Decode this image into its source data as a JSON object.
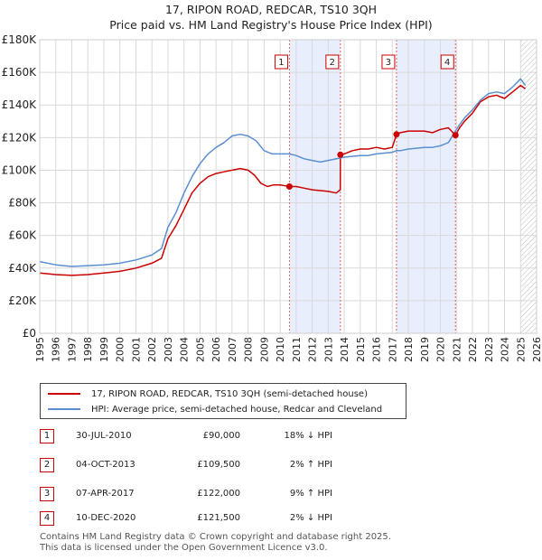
{
  "chart_data": {
    "type": "line",
    "title": "17, RIPON ROAD, REDCAR, TS10 3QH",
    "subtitle": "Price paid vs. HM Land Registry's House Price Index (HPI)",
    "ylim": [
      0,
      180000
    ],
    "xlim": [
      1995,
      2026
    ],
    "y_ticks": [
      0,
      20000,
      40000,
      60000,
      80000,
      100000,
      120000,
      140000,
      160000,
      180000
    ],
    "y_tick_labels": [
      "£0",
      "£20K",
      "£40K",
      "£60K",
      "£80K",
      "£100K",
      "£120K",
      "£140K",
      "£160K",
      "£180K"
    ],
    "x_ticks": [
      "1995",
      "1996",
      "1997",
      "1998",
      "1999",
      "2000",
      "2001",
      "2002",
      "2003",
      "2004",
      "2005",
      "2006",
      "2007",
      "2008",
      "2009",
      "2010",
      "2011",
      "2012",
      "2013",
      "2014",
      "2015",
      "2016",
      "2017",
      "2018",
      "2019",
      "2020",
      "2021",
      "2022",
      "2023",
      "2024",
      "2025",
      "2026"
    ],
    "grid": true,
    "series": [
      {
        "name": "17, RIPON ROAD, REDCAR, TS10 3QH (semi-detached house)",
        "color": "#cc0000",
        "points": [
          [
            1995.0,
            37000
          ],
          [
            1996.0,
            36000
          ],
          [
            1997.0,
            35500
          ],
          [
            1998.0,
            36000
          ],
          [
            1999.0,
            37000
          ],
          [
            2000.0,
            38000
          ],
          [
            2001.0,
            40000
          ],
          [
            2002.0,
            43000
          ],
          [
            2002.6,
            46000
          ],
          [
            2003.0,
            58000
          ],
          [
            2003.5,
            66000
          ],
          [
            2004.0,
            76000
          ],
          [
            2004.5,
            86000
          ],
          [
            2005.0,
            92000
          ],
          [
            2005.5,
            96000
          ],
          [
            2006.0,
            98000
          ],
          [
            2006.5,
            99000
          ],
          [
            2007.0,
            100000
          ],
          [
            2007.5,
            101000
          ],
          [
            2008.0,
            100000
          ],
          [
            2008.4,
            97000
          ],
          [
            2008.8,
            92000
          ],
          [
            2009.2,
            90000
          ],
          [
            2009.6,
            91000
          ],
          [
            2010.0,
            91000
          ],
          [
            2010.58,
            90000
          ],
          [
            2011.0,
            90000
          ],
          [
            2011.5,
            89000
          ],
          [
            2012.0,
            88000
          ],
          [
            2012.5,
            87500
          ],
          [
            2013.0,
            87000
          ],
          [
            2013.5,
            86000
          ],
          [
            2013.75,
            88000
          ],
          [
            2013.76,
            109500
          ],
          [
            2014.0,
            110000
          ],
          [
            2014.5,
            112000
          ],
          [
            2015.0,
            113000
          ],
          [
            2015.5,
            113000
          ],
          [
            2016.0,
            114000
          ],
          [
            2016.5,
            113000
          ],
          [
            2017.0,
            114000
          ],
          [
            2017.26,
            122000
          ],
          [
            2017.5,
            123000
          ],
          [
            2018.0,
            124000
          ],
          [
            2018.5,
            124000
          ],
          [
            2019.0,
            124000
          ],
          [
            2019.5,
            123000
          ],
          [
            2020.0,
            125000
          ],
          [
            2020.5,
            126000
          ],
          [
            2020.94,
            121500
          ],
          [
            2021.2,
            126000
          ],
          [
            2021.5,
            130000
          ],
          [
            2022.0,
            135000
          ],
          [
            2022.5,
            142000
          ],
          [
            2023.0,
            145000
          ],
          [
            2023.5,
            146000
          ],
          [
            2024.0,
            144000
          ],
          [
            2024.5,
            148000
          ],
          [
            2025.0,
            152000
          ],
          [
            2025.3,
            150000
          ]
        ]
      },
      {
        "name": "HPI: Average price, semi-detached house, Redcar and Cleveland",
        "color": "#5b8fd0",
        "points": [
          [
            1995.0,
            44000
          ],
          [
            1996.0,
            42000
          ],
          [
            1997.0,
            41000
          ],
          [
            1998.0,
            41500
          ],
          [
            1999.0,
            42000
          ],
          [
            2000.0,
            43000
          ],
          [
            2001.0,
            45000
          ],
          [
            2002.0,
            48000
          ],
          [
            2002.6,
            52000
          ],
          [
            2003.0,
            65000
          ],
          [
            2003.5,
            74000
          ],
          [
            2004.0,
            86000
          ],
          [
            2004.5,
            96000
          ],
          [
            2005.0,
            104000
          ],
          [
            2005.5,
            110000
          ],
          [
            2006.0,
            114000
          ],
          [
            2006.5,
            117000
          ],
          [
            2007.0,
            121000
          ],
          [
            2007.5,
            122000
          ],
          [
            2008.0,
            121000
          ],
          [
            2008.5,
            118000
          ],
          [
            2009.0,
            112000
          ],
          [
            2009.5,
            110000
          ],
          [
            2010.0,
            110000
          ],
          [
            2010.58,
            110000
          ],
          [
            2011.0,
            109000
          ],
          [
            2011.5,
            107000
          ],
          [
            2012.0,
            106000
          ],
          [
            2012.5,
            105000
          ],
          [
            2013.0,
            106000
          ],
          [
            2013.76,
            107500
          ],
          [
            2014.0,
            108000
          ],
          [
            2014.5,
            108500
          ],
          [
            2015.0,
            109000
          ],
          [
            2015.5,
            109000
          ],
          [
            2016.0,
            110000
          ],
          [
            2016.5,
            110500
          ],
          [
            2017.0,
            111000
          ],
          [
            2017.26,
            112000
          ],
          [
            2017.5,
            112000
          ],
          [
            2018.0,
            113000
          ],
          [
            2018.5,
            113500
          ],
          [
            2019.0,
            114000
          ],
          [
            2019.5,
            114000
          ],
          [
            2020.0,
            115000
          ],
          [
            2020.5,
            117000
          ],
          [
            2020.94,
            124000
          ],
          [
            2021.2,
            128000
          ],
          [
            2021.5,
            132000
          ],
          [
            2022.0,
            137000
          ],
          [
            2022.5,
            143000
          ],
          [
            2023.0,
            147000
          ],
          [
            2023.5,
            148000
          ],
          [
            2024.0,
            147000
          ],
          [
            2024.5,
            151000
          ],
          [
            2025.0,
            156000
          ],
          [
            2025.3,
            152000
          ]
        ]
      }
    ],
    "transactions": [
      {
        "num": "1",
        "x": 2010.58,
        "price": 90000,
        "date": "30-JUL-2010",
        "price_label": "£90,000",
        "hpi_label": "18% ↓ HPI"
      },
      {
        "num": "2",
        "x": 2013.76,
        "price": 109500,
        "date": "04-OCT-2013",
        "price_label": "£109,500",
        "hpi_label": "2% ↑ HPI"
      },
      {
        "num": "3",
        "x": 2017.26,
        "price": 122000,
        "date": "07-APR-2017",
        "price_label": "£122,000",
        "hpi_label": "9% ↑ HPI"
      },
      {
        "num": "4",
        "x": 2020.94,
        "price": 121500,
        "date": "10-DEC-2020",
        "price_label": "£121,500",
        "hpi_label": "2% ↓ HPI"
      }
    ],
    "shaded_ranges": [
      [
        2010.58,
        2013.76
      ],
      [
        2017.26,
        2020.94
      ]
    ],
    "hatch_from": 2025.0,
    "legend_position": "bottom"
  },
  "footer": {
    "line1": "Contains HM Land Registry data © Crown copyright and database right 2025.",
    "line2": "This data is licensed under the Open Government Licence v3.0."
  },
  "colors": {
    "price_line": "#cc0000",
    "hpi_line": "#5b8fd0",
    "shade": "#e8eefb"
  }
}
